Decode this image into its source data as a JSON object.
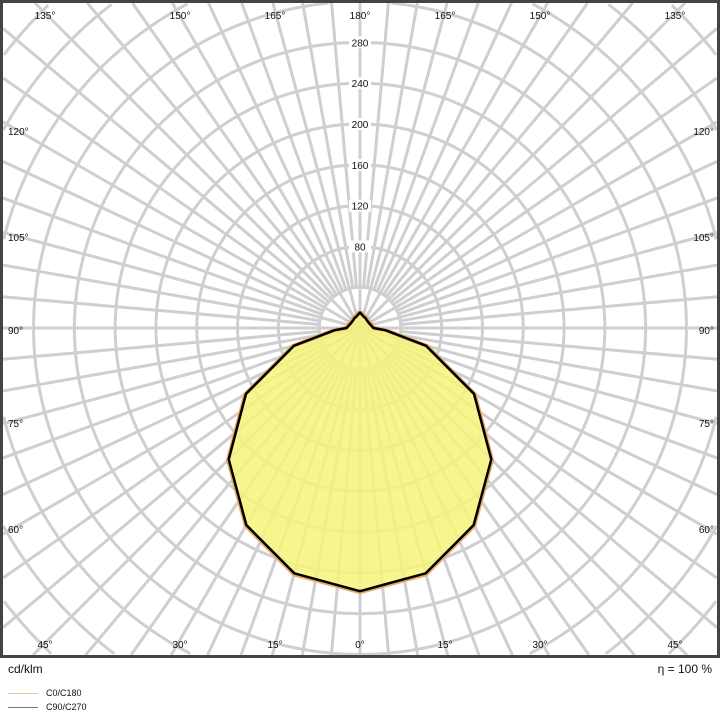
{
  "chart_data": {
    "type": "polar",
    "unit_label": "cd/klm",
    "efficiency_label": "η = 100 %",
    "radial_ticks": [
      80,
      120,
      160,
      200,
      240,
      280
    ],
    "radial_grid_step": 40,
    "angle_labels": {
      "top": [
        "135°",
        "150°",
        "165°",
        "180°",
        "165°",
        "150°",
        "135°"
      ],
      "left": [
        "120°",
        "105°",
        "90°",
        "75°",
        "60°"
      ],
      "right": [
        "120°",
        "105°",
        "90°",
        "75°",
        "60°"
      ],
      "bottom": [
        "45°",
        "30°",
        "15°",
        "0°",
        "15°",
        "30°",
        "45°"
      ]
    },
    "grid": true,
    "legend_position": "bottom-left",
    "series": [
      {
        "name": "C0/C180",
        "color": "#e8a860",
        "gamma": [
          0,
          15,
          30,
          45,
          60,
          75,
          85,
          90,
          105,
          120,
          135,
          150,
          165,
          175,
          180
        ],
        "values": [
          259,
          250,
          224,
          183,
          130,
          68,
          26,
          14,
          12,
          11,
          11,
          12,
          13,
          15,
          15
        ]
      },
      {
        "name": "C90/C270",
        "color": "#666666",
        "gamma": [
          0,
          15,
          30,
          45,
          60,
          75,
          85,
          90,
          105,
          120,
          135,
          150,
          165,
          175,
          180
        ],
        "values": [
          258,
          249,
          223,
          182,
          129,
          67,
          25,
          13,
          11,
          10,
          10,
          11,
          12,
          14,
          15
        ]
      }
    ],
    "fill_color": "#f6f57a"
  }
}
